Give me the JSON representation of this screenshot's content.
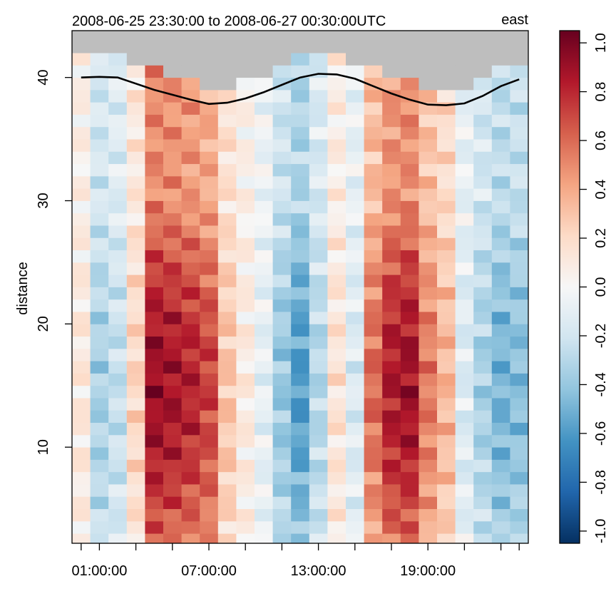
{
  "chart_data": {
    "type": "heatmap",
    "title": "2008-06-25 23:30:00 to 2008-06-27 00:30:00UTC",
    "subtitle": "east",
    "xlabel": "",
    "ylabel": "distance",
    "x_tick_labels": [
      "01:00:00",
      "07:00:00",
      "13:00:00",
      "19:00:00"
    ],
    "x_tick_hours": [
      1,
      7,
      13,
      19
    ],
    "x_minor_tick_hours": [
      0,
      1,
      3,
      5,
      7,
      9,
      11,
      13,
      15,
      17,
      19,
      21,
      23,
      24
    ],
    "x_range_hours": [
      -0.5,
      24.5
    ],
    "y_ticks": [
      10,
      20,
      30,
      40
    ],
    "y_range": [
      2.2,
      43.8
    ],
    "cell_height": 1,
    "columns_start_hour": 0,
    "columns_step_hours": 1,
    "colorbar": {
      "range": [
        -1.05,
        1.05
      ],
      "ticks": [
        -1.0,
        -0.8,
        -0.6,
        -0.4,
        -0.2,
        0.0,
        0.2,
        0.4,
        0.6,
        0.8,
        1.0
      ],
      "tick_labels": [
        "-1.0",
        "-0.8",
        "-0.6",
        "-0.4",
        "-0.2",
        "0.0",
        "0.2",
        "0.4",
        "0.6",
        "0.8",
        "1.0"
      ],
      "palette": [
        "#053061",
        "#2166ac",
        "#4393c3",
        "#92c5de",
        "#d1e5f0",
        "#f7f7f7",
        "#fddbc7",
        "#f4a582",
        "#d6604d",
        "#b2182b",
        "#67001f"
      ]
    },
    "missing_color": "#bebebe",
    "profile_peak_values": [
      0.12,
      -0.35,
      -0.25,
      0.22,
      0.92,
      0.88,
      0.82,
      0.72,
      0.3,
      0.1,
      -0.1,
      -0.4,
      -0.6,
      -0.3,
      0.15,
      -0.15,
      0.6,
      0.85,
      0.9,
      0.55,
      0.35,
      -0.15,
      -0.35,
      -0.5,
      -0.45
    ],
    "surface_line": {
      "hours": [
        0,
        1,
        2,
        3,
        4,
        5,
        6,
        7,
        8,
        9,
        10,
        11,
        12,
        13,
        14,
        15,
        16,
        17,
        18,
        19,
        20,
        21,
        22,
        23,
        24
      ],
      "distance": [
        40.0,
        40.05,
        40.0,
        39.5,
        39.0,
        38.6,
        38.2,
        37.85,
        37.95,
        38.3,
        38.8,
        39.4,
        40.0,
        40.3,
        40.25,
        39.9,
        39.3,
        38.7,
        38.2,
        37.8,
        37.75,
        37.9,
        38.5,
        39.3,
        39.85
      ]
    }
  }
}
